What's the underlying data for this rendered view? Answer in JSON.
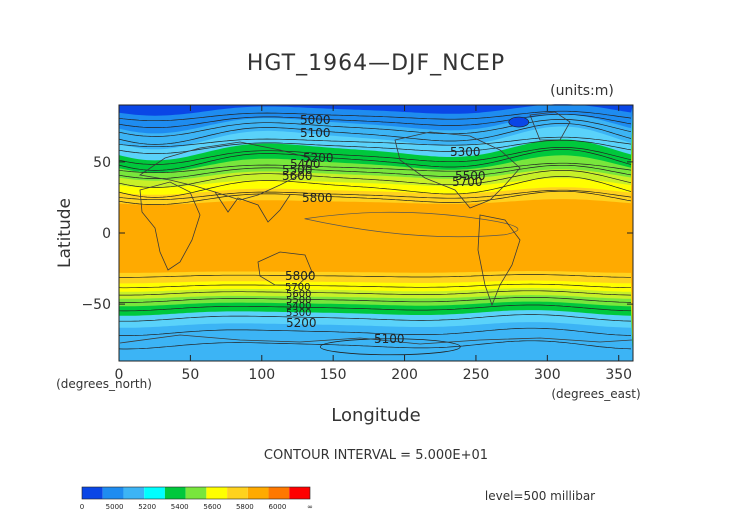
{
  "title": "HGT_1964—DJF_NCEP",
  "units": "(units:m)",
  "x_axis": {
    "label": "Longitude",
    "unit_note": "(degrees_east)",
    "ticks": [
      "0",
      "50",
      "100",
      "150",
      "200",
      "250",
      "300",
      "350"
    ],
    "range": [
      0,
      360
    ]
  },
  "y_axis": {
    "label": "Latitude",
    "unit_note": "(degrees_north)",
    "ticks": [
      "50",
      "0",
      "−50"
    ],
    "range": [
      -90,
      90
    ]
  },
  "contour_interval": "CONTOUR INTERVAL = 5.000E+01",
  "level": "level=500 millibar",
  "contour_labels": {
    "north": [
      "5000",
      "5100",
      "5200",
      "5300",
      "5400",
      "5500",
      "5600",
      "5700",
      "5800"
    ],
    "south": [
      "5800",
      "5700",
      "5600",
      "5500",
      "5400",
      "5300",
      "5200",
      "5100"
    ]
  },
  "colorbar": {
    "labels": [
      "0",
      "5000",
      "5200",
      "5400",
      "5600",
      "5800",
      "6000",
      "∞"
    ],
    "colors": [
      "#0a46e6",
      "#1e8cf0",
      "#3cb4f5",
      "#00ffff",
      "#00c83c",
      "#78e63c",
      "#ffff00",
      "#ffd21e",
      "#ffaa00",
      "#ff7800",
      "#ff0000"
    ]
  },
  "band_colors": {
    "b5000": "#0a46e6",
    "b5100": "#1e8cf0",
    "b5200": "#3cb4f5",
    "b5300": "#5ad2fa",
    "b5400": "#00c83c",
    "b5500": "#78e63c",
    "b5600": "#c8f028",
    "b5700": "#ffff00",
    "b5800": "#ffd21e",
    "b5900": "#ffaa00"
  }
}
